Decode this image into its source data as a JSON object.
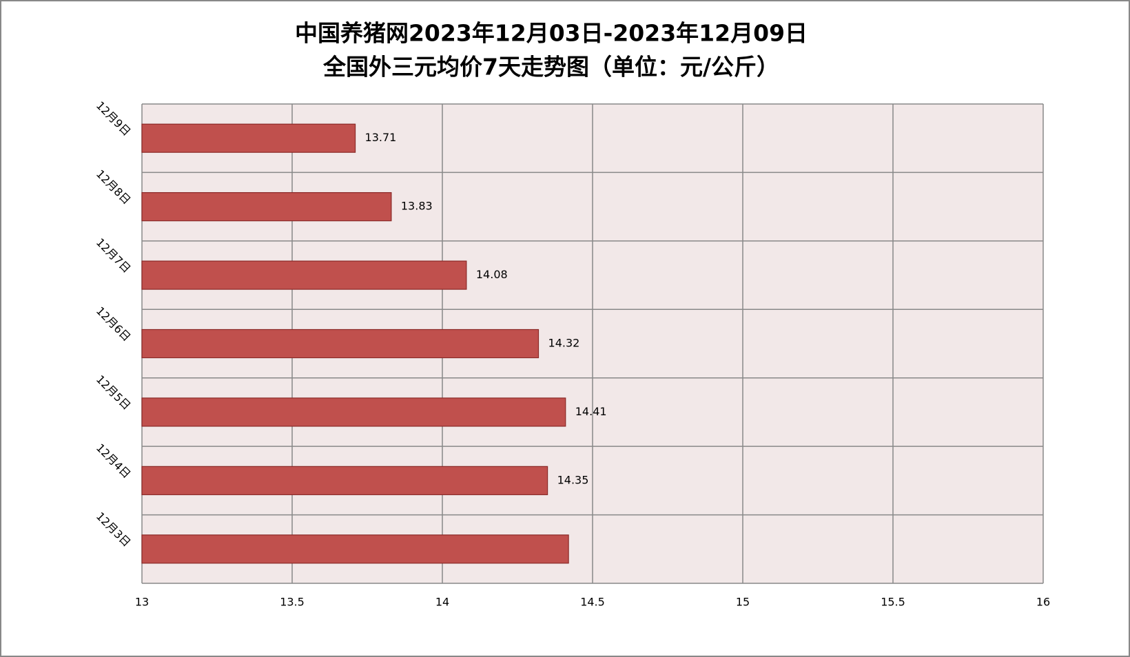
{
  "chart_data": {
    "type": "bar",
    "orientation": "horizontal",
    "title": "中国养猪网2023年12月03日-2023年12月09日",
    "subtitle": "全国外三元均价7天走势图（单位：元/公斤）",
    "categories": [
      "12月3日",
      "12月4日",
      "12月5日",
      "12月6日",
      "12月7日",
      "12月8日",
      "12月9日"
    ],
    "values": [
      14.42,
      14.35,
      14.41,
      14.32,
      14.08,
      13.83,
      13.71
    ],
    "value_labels": [
      null,
      "14.35",
      "14.41",
      "14.32",
      "14.08",
      "13.83",
      "13.71"
    ],
    "color": "#c0504d",
    "xlim": [
      13,
      16
    ],
    "xticks": [
      13,
      13.5,
      14,
      14.5,
      15,
      15.5,
      16
    ],
    "grid": true
  }
}
